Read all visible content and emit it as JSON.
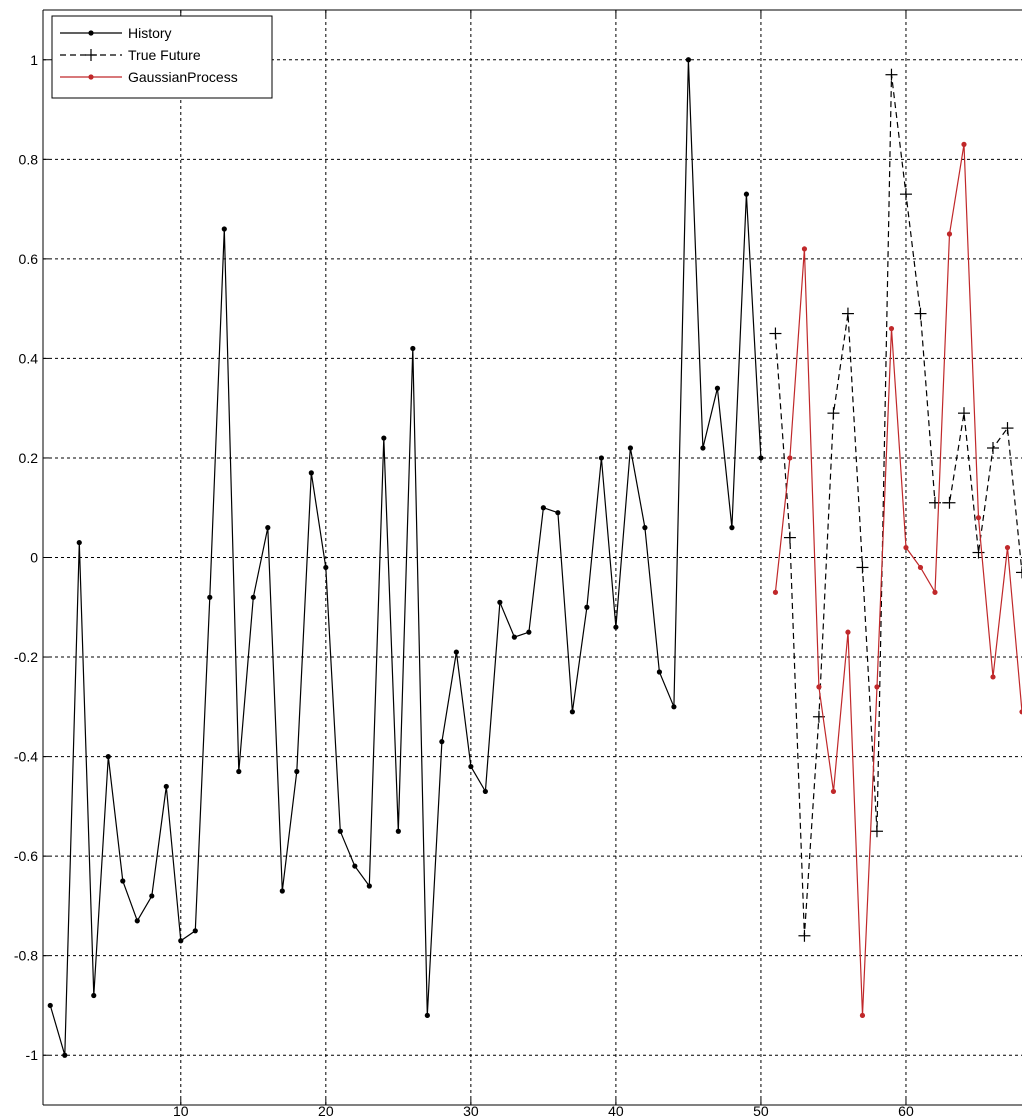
{
  "chart_data": {
    "type": "line",
    "title": "",
    "xlabel": "",
    "ylabel": "",
    "xlim": [
      0.5,
      68
    ],
    "ylim": [
      -1.1,
      1.1
    ],
    "grid": true,
    "legend_position": "top-left",
    "x_ticks": [
      10,
      20,
      30,
      40,
      50,
      60
    ],
    "y_ticks": [
      -1,
      -0.8,
      -0.6,
      -0.4,
      -0.2,
      0,
      0.2,
      0.4,
      0.6,
      0.8,
      1
    ],
    "x_tick_labels": [
      "10",
      "20",
      "30",
      "40",
      "50",
      "60"
    ],
    "y_tick_labels": [
      "-1",
      "-0.8",
      "-0.6",
      "-0.4",
      "-0.2",
      "0",
      "0.2",
      "0.4",
      "0.6",
      "0.8",
      "1"
    ],
    "colors": {
      "history": "#000000",
      "true_future": "#000000",
      "gaussian": "#c0282a"
    },
    "series": [
      {
        "name": "History",
        "style": "solid-dot",
        "x": [
          1,
          2,
          3,
          4,
          5,
          6,
          7,
          8,
          9,
          10,
          11,
          12,
          13,
          14,
          15,
          16,
          17,
          18,
          19,
          20,
          21,
          22,
          23,
          24,
          25,
          26,
          27,
          28,
          29,
          30,
          31,
          32,
          33,
          34,
          35,
          36,
          37,
          38,
          39,
          40,
          41,
          42,
          43,
          44,
          45,
          46,
          47,
          48,
          49,
          50
        ],
        "y": [
          -0.9,
          -1.0,
          0.03,
          -0.88,
          -0.4,
          -0.65,
          -0.73,
          -0.68,
          -0.46,
          -0.77,
          -0.75,
          -0.08,
          0.66,
          -0.43,
          -0.08,
          0.06,
          -0.67,
          -0.43,
          0.17,
          -0.02,
          -0.55,
          -0.62,
          -0.66,
          0.24,
          -0.55,
          0.42,
          -0.92,
          -0.37,
          -0.19,
          -0.42,
          -0.47,
          -0.09,
          -0.16,
          -0.15,
          0.1,
          0.09,
          -0.31,
          -0.1,
          0.2,
          -0.14,
          0.22,
          0.06,
          -0.23,
          -0.3,
          1.0,
          0.22,
          0.34,
          0.06,
          0.73,
          0.2
        ]
      },
      {
        "name": "True Future",
        "style": "dashed-plus",
        "x": [
          51,
          52,
          53,
          54,
          55,
          56,
          57,
          58,
          59,
          60,
          61,
          62,
          63,
          64,
          65,
          66,
          67,
          68
        ],
        "y": [
          0.45,
          0.04,
          -0.76,
          -0.32,
          0.29,
          0.49,
          -0.02,
          -0.55,
          0.97,
          0.73,
          0.49,
          0.11,
          0.11,
          0.29,
          0.01,
          0.22,
          0.26,
          -0.03
        ]
      },
      {
        "name": "GaussianProcess",
        "style": "solid-dot",
        "x": [
          51,
          52,
          53,
          54,
          55,
          56,
          57,
          58,
          59,
          60,
          61,
          62,
          63,
          64,
          65,
          66,
          67,
          68
        ],
        "y": [
          -0.07,
          0.2,
          0.62,
          -0.26,
          -0.47,
          -0.15,
          -0.92,
          -0.26,
          0.46,
          0.02,
          -0.02,
          -0.07,
          0.65,
          0.83,
          0.08,
          -0.24,
          0.02,
          -0.31
        ]
      }
    ]
  }
}
